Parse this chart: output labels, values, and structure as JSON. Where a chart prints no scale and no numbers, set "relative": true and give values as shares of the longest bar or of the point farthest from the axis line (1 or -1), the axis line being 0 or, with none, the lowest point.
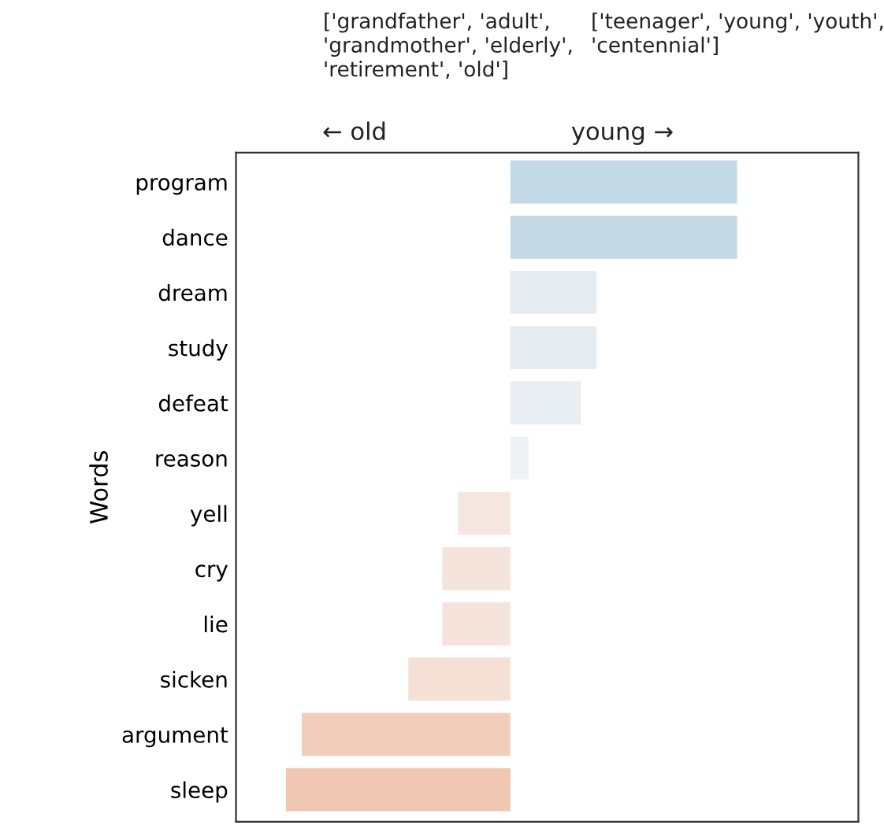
{
  "chart_data": {
    "type": "bar",
    "orientation": "horizontal",
    "relative": true,
    "ylabel": "Words",
    "categories": [
      "program",
      "dance",
      "dream",
      "study",
      "defeat",
      "reason",
      "yell",
      "cry",
      "lie",
      "sicken",
      "argument",
      "sleep"
    ],
    "values": [
      1,
      1,
      0.38,
      0.38,
      0.31,
      0.08,
      -0.23,
      -0.3,
      -0.3,
      -0.45,
      -0.92,
      -0.99
    ],
    "colors": [
      "#c3d9e6",
      "#c3d9e6",
      "#e5ecf1",
      "#e5ecf1",
      "#e7edf1",
      "#eff2f4",
      "#f5e6e0",
      "#f5e4dc",
      "#f5e4dc",
      "#f5e0d6",
      "#f1cdbb",
      "#f0c8b2"
    ],
    "annotations": [
      "['grandfather', 'adult', 'grandmother', 'elderly', 'retirement', 'old']",
      "['teenager', 'young', 'youth', 'centennial']",
      "← old",
      "young →"
    ],
    "grid": false,
    "legend": false
  }
}
